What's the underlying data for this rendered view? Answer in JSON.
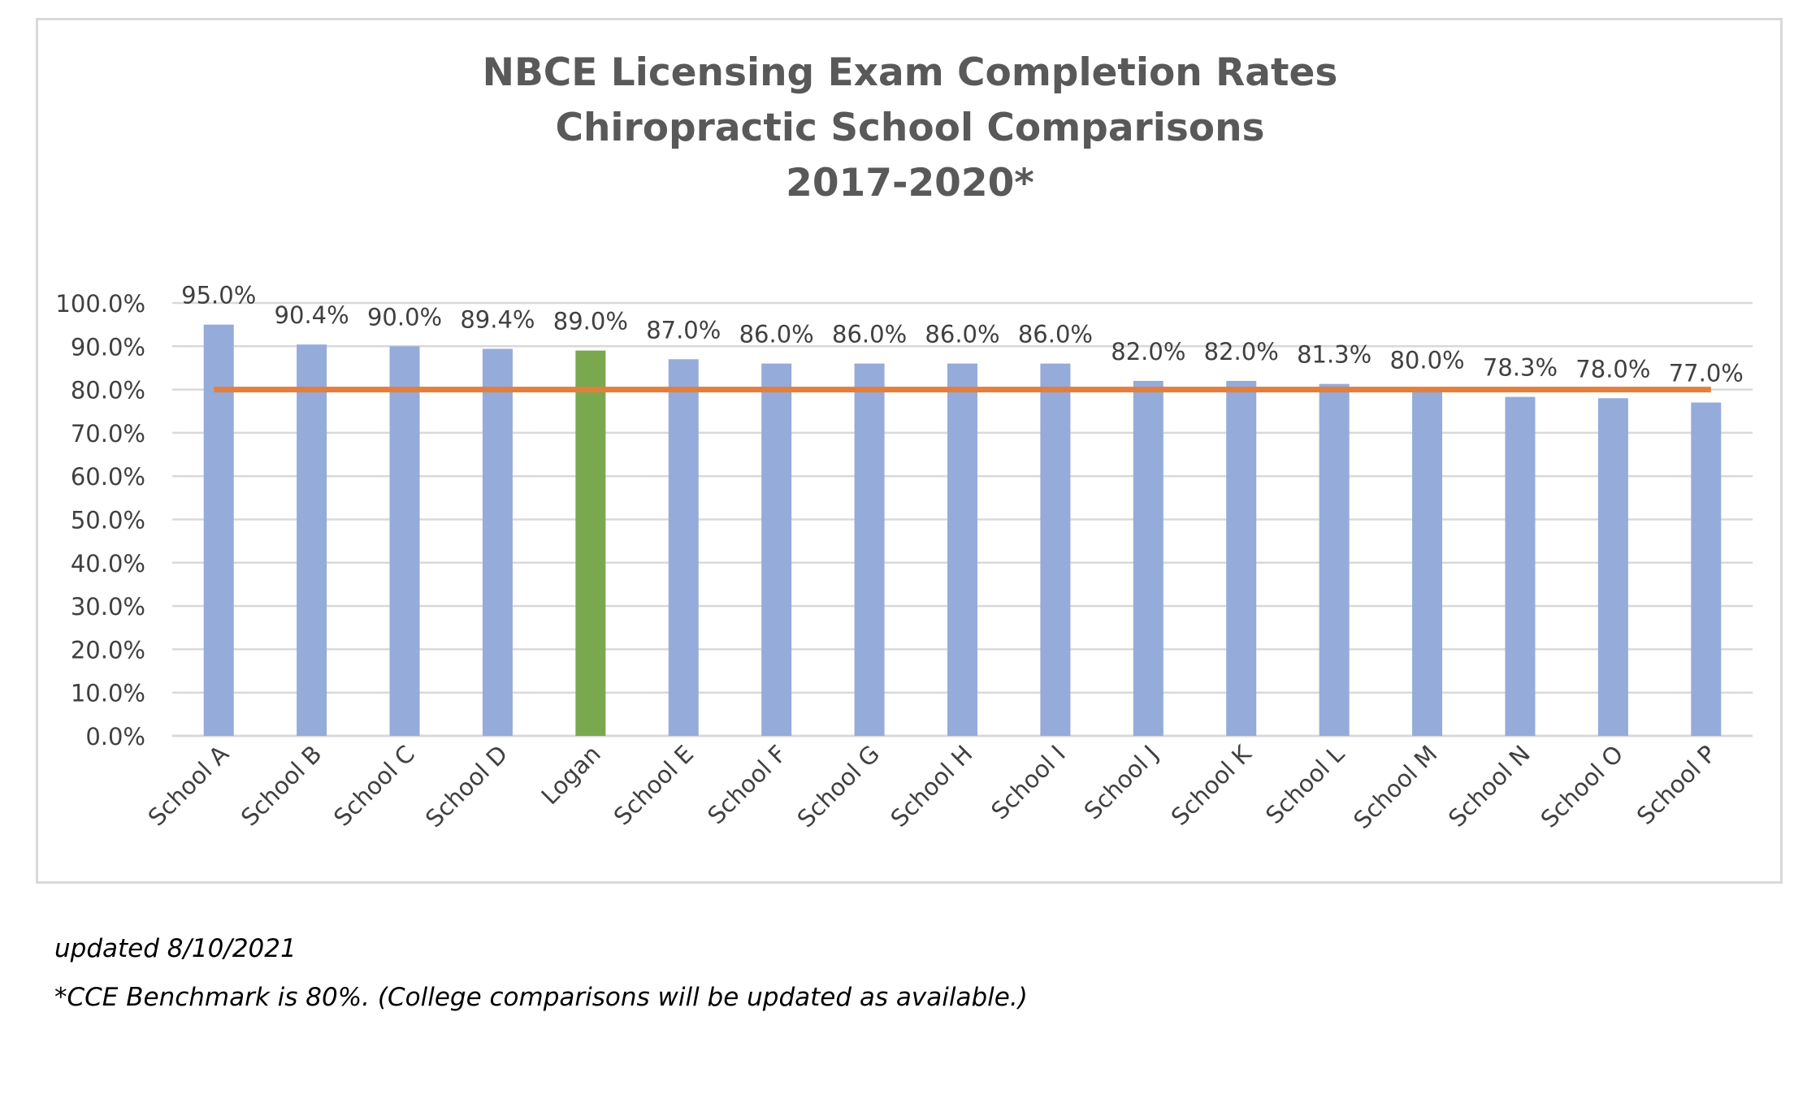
{
  "chart_data": {
    "type": "bar",
    "title_lines": [
      "NBCE Licensing Exam Completion Rates",
      "Chiropractic School Comparisons",
      "2017-2020*"
    ],
    "categories": [
      "School A",
      "School B",
      "School C",
      "School D",
      "Logan",
      "School E",
      "School F",
      "School G",
      "School H",
      "School I",
      "School J",
      "School K",
      "School L",
      "School M",
      "School N",
      "School O",
      "School P"
    ],
    "values": [
      95.0,
      90.4,
      90.0,
      89.4,
      89.0,
      87.0,
      86.0,
      86.0,
      86.0,
      86.0,
      82.0,
      82.0,
      81.3,
      80.0,
      78.3,
      78.0,
      77.0
    ],
    "data_labels": [
      "95.0%",
      "90.4%",
      "90.0%",
      "89.4%",
      "89.0%",
      "87.0%",
      "86.0%",
      "86.0%",
      "86.0%",
      "86.0%",
      "82.0%",
      "82.0%",
      "81.3%",
      "80.0%",
      "78.3%",
      "78.0%",
      "77.0%"
    ],
    "y_ticks": [
      0,
      10,
      20,
      30,
      40,
      50,
      60,
      70,
      80,
      90,
      100
    ],
    "y_tick_labels": [
      "0.0%",
      "10.0%",
      "20.0%",
      "30.0%",
      "40.0%",
      "50.0%",
      "60.0%",
      "70.0%",
      "80.0%",
      "90.0%",
      "100.0%"
    ],
    "ylim": [
      0,
      100
    ],
    "xlabel": "",
    "ylabel": "",
    "grid": true,
    "legend": "none",
    "highlight_category": "Logan",
    "benchmark": 80,
    "colors": {
      "bar": "#95abd9",
      "highlight": "#79a84e",
      "benchmark_line": "#e27f3f",
      "grid": "#d9d9d9",
      "text": "#404040",
      "title": "#595959"
    }
  },
  "footnotes": {
    "updated": "updated 8/10/2021",
    "benchmark_note": "*CCE Benchmark is 80%. (College comparisons will be updated as available.)"
  }
}
